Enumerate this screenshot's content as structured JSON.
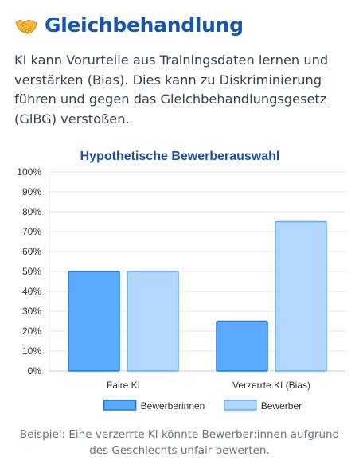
{
  "header": {
    "icon": "handshake-icon",
    "title": "Gleichbehandlung"
  },
  "intro_text": "KI kann Vorurteile aus Trainingsdaten lernen und verstärken (Bias). Dies kann zu Diskriminierung führen und gegen das Gleichbehandlungsgesetz (GlBG) verstoßen.",
  "chart_data": {
    "type": "bar",
    "title": "Hypothetische Bewerberauswahl",
    "categories": [
      "Faire KI",
      "Verzerrte KI (Bias)"
    ],
    "series": [
      {
        "name": "Bewerberinnen",
        "values": [
          50,
          25
        ],
        "fill": "#5aabff",
        "stroke": "#1a7be6"
      },
      {
        "name": "Bewerber",
        "values": [
          50,
          75
        ],
        "fill": "#b3d7ff",
        "stroke": "#5aabff"
      }
    ],
    "ylim": [
      0,
      100
    ],
    "y_ticks": [
      "0%",
      "10%",
      "20%",
      "30%",
      "40%",
      "50%",
      "60%",
      "70%",
      "80%",
      "90%",
      "100%"
    ],
    "grid": true,
    "legend_position": "bottom"
  },
  "caption": "Beispiel: Eine verzerrte KI könnte Bewerber:innen aufgrund des Geschlechts unfair bewerten."
}
